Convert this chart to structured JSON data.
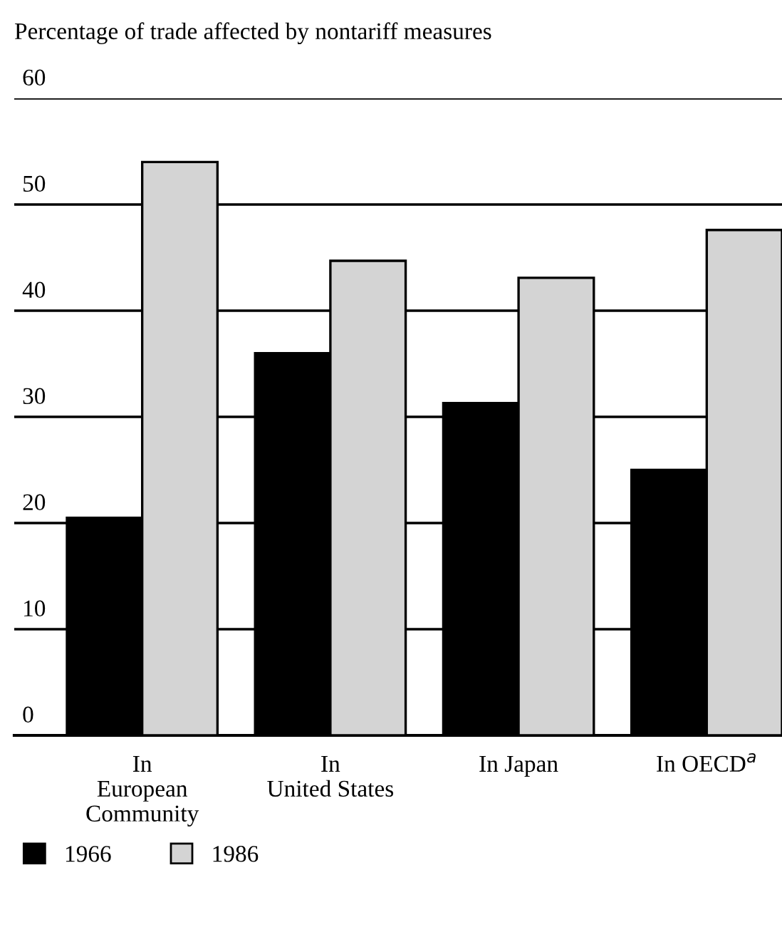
{
  "chart_data": {
    "type": "bar",
    "ylabel": "Percentage of trade affected by nontariff measures",
    "categories": [
      "In\nEuropean\nCommunity",
      "In\nUnited States",
      "In Japan",
      "In OECD$^{a}$"
    ],
    "series": [
      {
        "name": "1966",
        "color": "#000000",
        "values": [
          20.5,
          36,
          31.3,
          25
        ]
      },
      {
        "name": "1986",
        "color": "#d4d4d4",
        "values": [
          54,
          44.7,
          43.1,
          47.6
        ]
      }
    ],
    "ylim": [
      0,
      60
    ],
    "yticks": [
      0,
      10,
      20,
      30,
      40,
      50,
      60
    ],
    "grid": "y",
    "legend": "bottom"
  }
}
